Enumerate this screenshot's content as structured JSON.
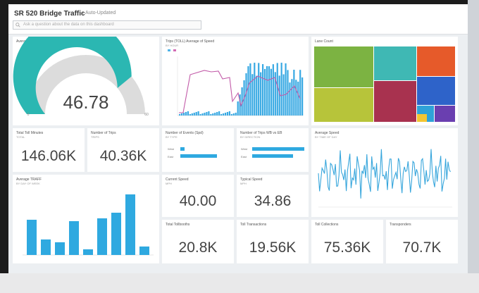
{
  "header": {
    "title": "SR 520 Bridge Traffic",
    "subtitle": "↓ Auto-Updated",
    "qa_placeholder": "Ask a question about the data on this dashboard"
  },
  "tiles": {
    "gauge": {
      "title": "Average Speed",
      "value": "46.78",
      "fraction": 0.78,
      "min": "0",
      "max": "60",
      "fill_color": "#2bb7b2"
    },
    "combo": {
      "title": "Trips (TOLL) Average of Speed",
      "sub": "BY HOUR"
    },
    "treemap": {
      "title": "Lane Count"
    },
    "kpi1": {
      "title": "Total Toll Minutes",
      "sub": "TOTAL",
      "value": "146.06K"
    },
    "kpi2": {
      "title": "Number of Trips",
      "sub": "TRIPS",
      "value": "40.36K"
    },
    "hbar1": {
      "title": "Number of Events (Spd)",
      "sub": "BY TYPE",
      "labels": [
        "West",
        "East"
      ]
    },
    "hbar2": {
      "title": "Number of Trips WB vs EB",
      "sub": "BY DIRECTION",
      "labels": [
        "West",
        "East"
      ]
    },
    "sparkline": {
      "title": "Average Speed",
      "sub": "BY TIME OF DAY"
    },
    "column": {
      "title": "Average TRAFF",
      "sub": "BY DAY OF WEEK"
    },
    "kpi3": {
      "title": "Current Speed",
      "sub": "MPH",
      "value": "40.00"
    },
    "kpi4": {
      "title": "Typical Speed",
      "sub": "MPH",
      "value": "34.86"
    },
    "kpi5": {
      "title": "Total Tollbooths",
      "value": "20.8K"
    },
    "kpi6": {
      "title": "Toll Transactions",
      "value": "19.56K"
    },
    "kpi7": {
      "title": "Toll Collections",
      "value": "75.36K"
    },
    "kpi8": {
      "title": "Transponders",
      "value": "70.7K"
    }
  }
}
